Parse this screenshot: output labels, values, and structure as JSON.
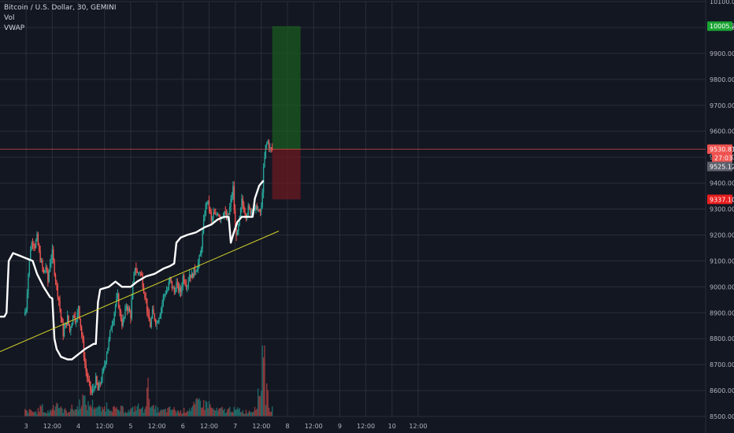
{
  "header": {
    "title": "Bitcoin / U.S. Dollar, 30, GEMINI",
    "indicators": [
      "Vol",
      "VWAP"
    ]
  },
  "colors": {
    "background": "#131722",
    "grid": "#2a2e39",
    "up": "#26a69a",
    "down": "#ef5350",
    "vwap": "#ffffff",
    "trendline": "#d4d42a",
    "target_zone": "#1b5e20",
    "stop_zone": "#6b1a22",
    "target_badge": "#1aa534",
    "stop_badge": "#e91e1e",
    "price_badge": "#ef5350",
    "vwap_badge": "#5d606b"
  },
  "chart_data": {
    "type": "candlestick",
    "symbol": "Bitcoin / U.S. Dollar",
    "interval": "30",
    "exchange": "GEMINI",
    "ylim": [
      8500,
      10100
    ],
    "y_ticks": [
      8500,
      8600,
      8700,
      8800,
      8900,
      9000,
      9100,
      9200,
      9300,
      9400,
      9500,
      9600,
      9700,
      9800,
      9900,
      10000,
      10100
    ],
    "y_tick_labels": [
      "8500.00",
      "8600.00",
      "8700.00",
      "8800.00",
      "8900.00",
      "9000.00",
      "9100.00",
      "9200.00",
      "9300.00",
      "9400.00",
      "9500.00",
      "9600.00",
      "9700.00",
      "9800.00",
      "9900.00",
      "10000.00",
      "10100.00"
    ],
    "x_range_hours": [
      -12,
      312
    ],
    "x_ticks": [
      {
        "label": "3",
        "hours": 0
      },
      {
        "label": "12:00",
        "hours": 12
      },
      {
        "label": "4",
        "hours": 24
      },
      {
        "label": "12:00",
        "hours": 36
      },
      {
        "label": "5",
        "hours": 48
      },
      {
        "label": "12:00",
        "hours": 60
      },
      {
        "label": "6",
        "hours": 72
      },
      {
        "label": "12:00",
        "hours": 84
      },
      {
        "label": "7",
        "hours": 96
      },
      {
        "label": "12:00",
        "hours": 108
      },
      {
        "label": "8",
        "hours": 120
      },
      {
        "label": "12:00",
        "hours": 132
      },
      {
        "label": "9",
        "hours": 144
      },
      {
        "label": "12:00",
        "hours": 156
      },
      {
        "label": "10",
        "hours": 168
      },
      {
        "label": "12:00",
        "hours": 180
      }
    ],
    "price_path": [
      [
        -1,
        8890
      ],
      [
        0,
        8920
      ],
      [
        1,
        9050
      ],
      [
        2,
        9150
      ],
      [
        3,
        9180
      ],
      [
        4,
        9160
      ],
      [
        5,
        9190
      ],
      [
        6,
        9130
      ],
      [
        7,
        9090
      ],
      [
        8,
        9050
      ],
      [
        9,
        9080
      ],
      [
        10,
        9020
      ],
      [
        11,
        9100
      ],
      [
        12,
        9130
      ],
      [
        13,
        9060
      ],
      [
        14,
        9000
      ],
      [
        15,
        8950
      ],
      [
        16,
        8880
      ],
      [
        17,
        8820
      ],
      [
        18,
        8850
      ],
      [
        19,
        8880
      ],
      [
        20,
        8830
      ],
      [
        21,
        8870
      ],
      [
        22,
        8900
      ],
      [
        23,
        8860
      ],
      [
        24,
        8930
      ],
      [
        25,
        8850
      ],
      [
        26,
        8780
      ],
      [
        27,
        8700
      ],
      [
        28,
        8650
      ],
      [
        29,
        8620
      ],
      [
        30,
        8590
      ],
      [
        31,
        8610
      ],
      [
        32,
        8640
      ],
      [
        33,
        8600
      ],
      [
        34,
        8630
      ],
      [
        35,
        8660
      ],
      [
        36,
        8700
      ],
      [
        37,
        8750
      ],
      [
        38,
        8790
      ],
      [
        39,
        8850
      ],
      [
        40,
        8880
      ],
      [
        41,
        8930
      ],
      [
        42,
        8960
      ],
      [
        43,
        8900
      ],
      [
        44,
        8860
      ],
      [
        45,
        8880
      ],
      [
        46,
        8930
      ],
      [
        47,
        8910
      ],
      [
        48,
        8890
      ],
      [
        49,
        9000
      ],
      [
        50,
        9080
      ],
      [
        51,
        9050
      ],
      [
        52,
        9060
      ],
      [
        53,
        9040
      ],
      [
        54,
        8990
      ],
      [
        55,
        8950
      ],
      [
        56,
        8880
      ],
      [
        57,
        8850
      ],
      [
        58,
        8900
      ],
      [
        59,
        8880
      ],
      [
        60,
        8860
      ],
      [
        61,
        8890
      ],
      [
        62,
        8920
      ],
      [
        63,
        8960
      ],
      [
        64,
        8980
      ],
      [
        65,
        8990
      ],
      [
        66,
        9030
      ],
      [
        67,
        9000
      ],
      [
        68,
        8980
      ],
      [
        69,
        9010
      ],
      [
        70,
        8990
      ],
      [
        71,
        8980
      ],
      [
        72,
        9040
      ],
      [
        73,
        9020
      ],
      [
        74,
        9010
      ],
      [
        75,
        9050
      ],
      [
        76,
        9040
      ],
      [
        77,
        9060
      ],
      [
        78,
        9070
      ],
      [
        79,
        9090
      ],
      [
        80,
        9120
      ],
      [
        81,
        9200
      ],
      [
        82,
        9290
      ],
      [
        83,
        9330
      ],
      [
        84,
        9310
      ],
      [
        85,
        9250
      ],
      [
        86,
        9280
      ],
      [
        87,
        9270
      ],
      [
        88,
        9290
      ],
      [
        89,
        9270
      ],
      [
        90,
        9280
      ],
      [
        91,
        9290
      ],
      [
        92,
        9260
      ],
      [
        93,
        9280
      ],
      [
        94,
        9330
      ],
      [
        95,
        9380
      ],
      [
        96,
        9220
      ],
      [
        97,
        9200
      ],
      [
        98,
        9260
      ],
      [
        99,
        9330
      ],
      [
        100,
        9300
      ],
      [
        101,
        9280
      ],
      [
        102,
        9300
      ],
      [
        103,
        9290
      ],
      [
        104,
        9310
      ],
      [
        105,
        9290
      ],
      [
        106,
        9310
      ],
      [
        107,
        9280
      ],
      [
        108,
        9300
      ],
      [
        109,
        9450
      ],
      [
        110,
        9540
      ],
      [
        111,
        9560
      ],
      [
        112,
        9530
      ],
      [
        113,
        9531
      ]
    ],
    "vwap": [
      [
        -12,
        8885
      ],
      [
        -10,
        8885
      ],
      [
        -9,
        8900
      ],
      [
        -8,
        9100
      ],
      [
        -6,
        9130
      ],
      [
        -3,
        9120
      ],
      [
        0,
        9110
      ],
      [
        3,
        9100
      ],
      [
        5,
        9050
      ],
      [
        8,
        9000
      ],
      [
        11,
        8960
      ],
      [
        12,
        8955
      ],
      [
        13,
        8800
      ],
      [
        14,
        8760
      ],
      [
        16,
        8730
      ],
      [
        19,
        8720
      ],
      [
        21,
        8720
      ],
      [
        24,
        8740
      ],
      [
        27,
        8760
      ],
      [
        29,
        8770
      ],
      [
        31,
        8780
      ],
      [
        32,
        8780
      ],
      [
        33,
        8940
      ],
      [
        34,
        8990
      ],
      [
        38,
        9000
      ],
      [
        41,
        9020
      ],
      [
        44,
        9000
      ],
      [
        48,
        9000
      ],
      [
        51,
        9020
      ],
      [
        55,
        9040
      ],
      [
        59,
        9050
      ],
      [
        63,
        9070
      ],
      [
        66,
        9080
      ],
      [
        68,
        9090
      ],
      [
        69,
        9170
      ],
      [
        71,
        9190
      ],
      [
        74,
        9200
      ],
      [
        78,
        9210
      ],
      [
        82,
        9230
      ],
      [
        85,
        9240
      ],
      [
        88,
        9260
      ],
      [
        91,
        9270
      ],
      [
        93,
        9270
      ],
      [
        94,
        9170
      ],
      [
        95,
        9200
      ],
      [
        97,
        9250
      ],
      [
        99,
        9270
      ],
      [
        102,
        9270
      ],
      [
        104,
        9270
      ],
      [
        105,
        9340
      ],
      [
        107,
        9390
      ],
      [
        109,
        9410
      ]
    ],
    "volume": [
      [
        0,
        8
      ],
      [
        2,
        9
      ],
      [
        5,
        7
      ],
      [
        7,
        18
      ],
      [
        9,
        6
      ],
      [
        11,
        10
      ],
      [
        14,
        25
      ],
      [
        16,
        12
      ],
      [
        19,
        9
      ],
      [
        21,
        14
      ],
      [
        23,
        12
      ],
      [
        26,
        32
      ],
      [
        28,
        18
      ],
      [
        30,
        22
      ],
      [
        33,
        15
      ],
      [
        35,
        11
      ],
      [
        37,
        19
      ],
      [
        40,
        14
      ],
      [
        42,
        10
      ],
      [
        44,
        13
      ],
      [
        47,
        9
      ],
      [
        49,
        12
      ],
      [
        51,
        17
      ],
      [
        54,
        11
      ],
      [
        56,
        46
      ],
      [
        58,
        14
      ],
      [
        60,
        12
      ],
      [
        62,
        9
      ],
      [
        65,
        11
      ],
      [
        67,
        13
      ],
      [
        69,
        10
      ],
      [
        71,
        8
      ],
      [
        74,
        12
      ],
      [
        76,
        14
      ],
      [
        78,
        20
      ],
      [
        80,
        28
      ],
      [
        82,
        18
      ],
      [
        83,
        25
      ],
      [
        86,
        11
      ],
      [
        88,
        10
      ],
      [
        90,
        12
      ],
      [
        92,
        9
      ],
      [
        94,
        14
      ],
      [
        96,
        10
      ],
      [
        98,
        12
      ],
      [
        100,
        8
      ],
      [
        102,
        9
      ],
      [
        104,
        10
      ],
      [
        106,
        25
      ],
      [
        108,
        55
      ],
      [
        109,
        165
      ],
      [
        110,
        35
      ],
      [
        111,
        42
      ],
      [
        112,
        12
      ]
    ],
    "trendline": {
      "start": [
        -12,
        8750
      ],
      "end": [
        116,
        9215
      ],
      "label": ""
    },
    "position": {
      "start_hours": 113,
      "end_hours": 126,
      "entry": 9530.81,
      "target": 10005.29,
      "stop": 9337.1
    },
    "price_labels": {
      "target": "10005.29",
      "current": "9530.81",
      "countdown": "27:03",
      "vwap_value": "9525.12",
      "stop": "9337.10"
    }
  }
}
